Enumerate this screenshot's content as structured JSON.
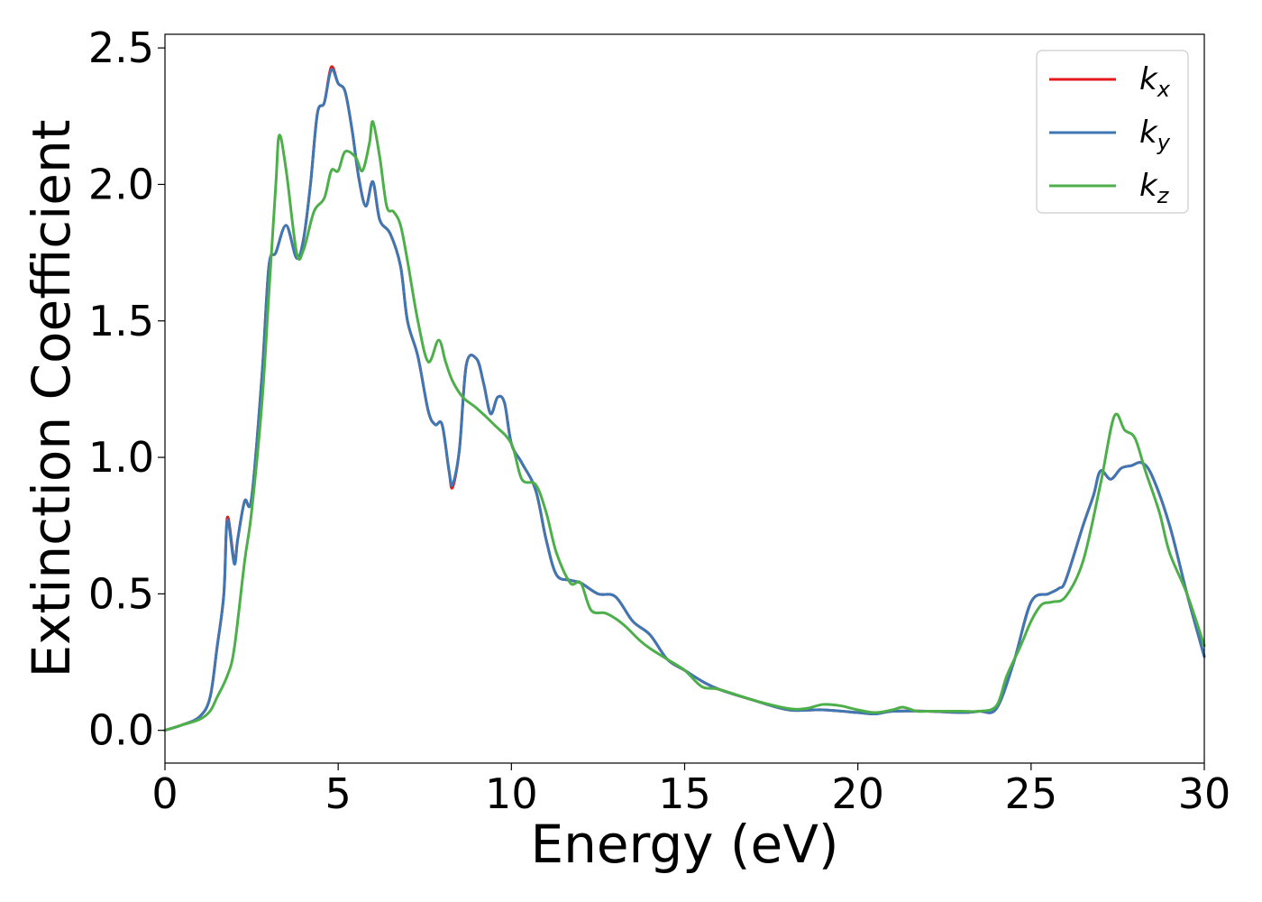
{
  "chart_data": {
    "type": "line",
    "title": "",
    "xlabel": "Energy (eV)",
    "ylabel": "Extinction Coefficient",
    "xlim": [
      0,
      30
    ],
    "ylim": [
      -0.12,
      2.55
    ],
    "xticks": [
      0,
      5,
      10,
      15,
      20,
      25,
      30
    ],
    "yticks": [
      0.0,
      0.5,
      1.0,
      1.5,
      2.0,
      2.5
    ],
    "xtick_labels": [
      "0",
      "5",
      "10",
      "15",
      "20",
      "25",
      "30"
    ],
    "ytick_labels": [
      "0.0",
      "0.5",
      "1.0",
      "1.5",
      "2.0",
      "2.5"
    ],
    "grid": false,
    "legend_position": "top-right",
    "series": [
      {
        "name": "k_x",
        "legend_base": "k",
        "legend_sub": "x",
        "color": "#e41a1c",
        "x": [
          0,
          0.5,
          1.0,
          1.3,
          1.5,
          1.7,
          1.8,
          2.0,
          2.1,
          2.3,
          2.5,
          2.8,
          3.0,
          3.2,
          3.5,
          3.8,
          4.0,
          4.2,
          4.4,
          4.6,
          4.8,
          5.0,
          5.2,
          5.4,
          5.6,
          5.8,
          6.0,
          6.2,
          6.5,
          6.8,
          7.0,
          7.3,
          7.6,
          7.8,
          8.0,
          8.2,
          8.3,
          8.5,
          8.7,
          9.0,
          9.2,
          9.4,
          9.6,
          9.8,
          10.0,
          10.3,
          10.7,
          11.0,
          11.3,
          11.7,
          12.0,
          12.5,
          13.0,
          13.5,
          14.0,
          14.5,
          15.0,
          15.5,
          16.0,
          17.0,
          18.0,
          19.0,
          20.0,
          20.5,
          21.0,
          22.0,
          23.0,
          23.5,
          24.0,
          24.5,
          25.0,
          25.5,
          25.8,
          26.0,
          26.5,
          26.8,
          27.0,
          27.3,
          27.6,
          27.9,
          28.2,
          28.5,
          29.0,
          29.5,
          30.0
        ],
        "y": [
          0.0,
          0.02,
          0.05,
          0.12,
          0.3,
          0.5,
          0.78,
          0.62,
          0.7,
          0.84,
          0.85,
          1.3,
          1.7,
          1.75,
          1.85,
          1.73,
          1.8,
          2.0,
          2.26,
          2.3,
          2.43,
          2.37,
          2.34,
          2.2,
          2.02,
          1.92,
          2.01,
          1.87,
          1.82,
          1.7,
          1.5,
          1.37,
          1.17,
          1.12,
          1.12,
          0.95,
          0.89,
          1.03,
          1.34,
          1.36,
          1.27,
          1.16,
          1.22,
          1.2,
          1.05,
          0.98,
          0.88,
          0.7,
          0.57,
          0.55,
          0.54,
          0.5,
          0.49,
          0.4,
          0.35,
          0.26,
          0.22,
          0.18,
          0.15,
          0.11,
          0.075,
          0.075,
          0.065,
          0.06,
          0.07,
          0.07,
          0.065,
          0.07,
          0.08,
          0.25,
          0.47,
          0.5,
          0.52,
          0.55,
          0.75,
          0.86,
          0.95,
          0.92,
          0.96,
          0.97,
          0.98,
          0.93,
          0.75,
          0.5,
          0.27
        ]
      },
      {
        "name": "k_y",
        "legend_base": "k",
        "legend_sub": "y",
        "color": "#3d78b4",
        "x": [
          0,
          0.5,
          1.0,
          1.3,
          1.5,
          1.7,
          1.8,
          2.0,
          2.1,
          2.3,
          2.5,
          2.8,
          3.0,
          3.2,
          3.5,
          3.8,
          4.0,
          4.2,
          4.4,
          4.6,
          4.8,
          5.0,
          5.2,
          5.4,
          5.6,
          5.8,
          6.0,
          6.2,
          6.5,
          6.8,
          7.0,
          7.3,
          7.6,
          7.8,
          8.0,
          8.2,
          8.3,
          8.5,
          8.7,
          9.0,
          9.2,
          9.4,
          9.6,
          9.8,
          10.0,
          10.3,
          10.7,
          11.0,
          11.3,
          11.7,
          12.0,
          12.5,
          13.0,
          13.5,
          14.0,
          14.5,
          15.0,
          15.5,
          16.0,
          17.0,
          18.0,
          19.0,
          20.0,
          20.5,
          21.0,
          22.0,
          23.0,
          23.5,
          24.0,
          24.5,
          25.0,
          25.5,
          25.8,
          26.0,
          26.5,
          26.8,
          27.0,
          27.3,
          27.6,
          27.9,
          28.2,
          28.5,
          29.0,
          29.5,
          30.0
        ],
        "y": [
          0.0,
          0.02,
          0.05,
          0.12,
          0.3,
          0.5,
          0.77,
          0.61,
          0.7,
          0.84,
          0.85,
          1.3,
          1.7,
          1.75,
          1.85,
          1.73,
          1.8,
          2.0,
          2.26,
          2.3,
          2.42,
          2.37,
          2.34,
          2.2,
          2.02,
          1.92,
          2.01,
          1.87,
          1.82,
          1.7,
          1.5,
          1.37,
          1.17,
          1.12,
          1.12,
          0.95,
          0.9,
          1.03,
          1.34,
          1.36,
          1.27,
          1.16,
          1.22,
          1.2,
          1.05,
          0.98,
          0.88,
          0.7,
          0.57,
          0.55,
          0.54,
          0.5,
          0.49,
          0.4,
          0.35,
          0.26,
          0.22,
          0.18,
          0.15,
          0.11,
          0.075,
          0.075,
          0.065,
          0.06,
          0.07,
          0.07,
          0.065,
          0.07,
          0.08,
          0.25,
          0.47,
          0.5,
          0.52,
          0.55,
          0.75,
          0.86,
          0.95,
          0.92,
          0.96,
          0.97,
          0.98,
          0.93,
          0.75,
          0.5,
          0.27
        ]
      },
      {
        "name": "k_z",
        "legend_base": "k",
        "legend_sub": "z",
        "color": "#4daf4a",
        "x": [
          0,
          0.5,
          1.0,
          1.3,
          1.5,
          1.8,
          2.0,
          2.3,
          2.5,
          2.8,
          3.0,
          3.2,
          3.3,
          3.5,
          3.8,
          4.0,
          4.3,
          4.6,
          4.8,
          5.0,
          5.2,
          5.5,
          5.7,
          5.9,
          6.0,
          6.2,
          6.4,
          6.6,
          6.8,
          7.0,
          7.3,
          7.6,
          7.9,
          8.1,
          8.3,
          8.6,
          9.0,
          9.5,
          10.0,
          10.3,
          10.7,
          11.0,
          11.3,
          11.7,
          12.0,
          12.3,
          12.7,
          13.0,
          13.3,
          13.7,
          14.0,
          14.5,
          15.0,
          15.5,
          16.0,
          17.0,
          18.0,
          18.5,
          19.0,
          19.5,
          20.0,
          20.5,
          21.0,
          21.3,
          21.7,
          22.0,
          23.0,
          23.5,
          24.0,
          24.3,
          24.7,
          25.0,
          25.3,
          25.6,
          26.0,
          26.5,
          27.0,
          27.4,
          27.7,
          28.0,
          28.3,
          28.7,
          29.0,
          29.5,
          30.0
        ],
        "y": [
          0.0,
          0.02,
          0.04,
          0.07,
          0.12,
          0.2,
          0.3,
          0.62,
          0.8,
          1.2,
          1.6,
          2.0,
          2.18,
          2.05,
          1.75,
          1.76,
          1.9,
          1.95,
          2.05,
          2.05,
          2.12,
          2.1,
          2.05,
          2.15,
          2.23,
          2.1,
          1.92,
          1.9,
          1.85,
          1.72,
          1.5,
          1.35,
          1.43,
          1.35,
          1.28,
          1.22,
          1.18,
          1.12,
          1.05,
          0.92,
          0.9,
          0.8,
          0.65,
          0.54,
          0.54,
          0.44,
          0.43,
          0.41,
          0.38,
          0.33,
          0.3,
          0.26,
          0.22,
          0.16,
          0.15,
          0.11,
          0.08,
          0.08,
          0.095,
          0.09,
          0.075,
          0.065,
          0.075,
          0.085,
          0.07,
          0.07,
          0.07,
          0.07,
          0.09,
          0.2,
          0.31,
          0.4,
          0.46,
          0.47,
          0.49,
          0.62,
          0.9,
          1.15,
          1.1,
          1.07,
          0.95,
          0.8,
          0.65,
          0.5,
          0.31
        ]
      }
    ]
  }
}
